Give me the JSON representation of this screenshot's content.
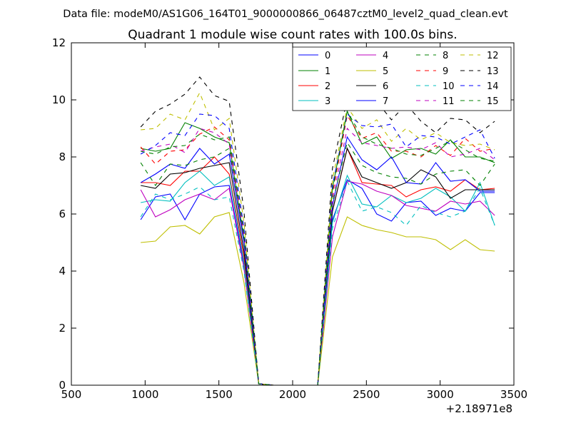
{
  "chart_data": {
    "type": "line",
    "suptitle": "Data file: modeM0/AS1G06_164T01_9000000866_06487cztM0_level2_quad_clean.evt",
    "title": "Quadrant 1 module wise count rates with 100.0s bins.",
    "xlabel": "",
    "ylabel": "",
    "x_offset_label": "+2.18971e8",
    "xlim": [
      500,
      3500
    ],
    "ylim": [
      0,
      12
    ],
    "xticks": [
      500,
      1000,
      1500,
      2000,
      2500,
      3000,
      3500
    ],
    "yticks": [
      0,
      2,
      4,
      6,
      8,
      10,
      12
    ],
    "x": [
      970,
      1070,
      1170,
      1270,
      1370,
      1470,
      1570,
      1670,
      1770,
      1870,
      1970,
      2070,
      2170,
      2270,
      2370,
      2470,
      2570,
      2670,
      2770,
      2870,
      2970,
      3070,
      3170,
      3270,
      3370
    ],
    "legend": {
      "position": "top-right",
      "ncol": 4
    },
    "series": [
      {
        "name": "0",
        "color": "#0000ff",
        "dash": "solid",
        "values": [
          5.8,
          6.6,
          6.7,
          5.8,
          6.7,
          6.95,
          7.0,
          4.2,
          0.05,
          0,
          0,
          0,
          0,
          5.8,
          7.2,
          6.9,
          6.0,
          5.75,
          6.4,
          6.45,
          5.95,
          6.2,
          6.1,
          6.75,
          6.75
        ]
      },
      {
        "name": "1",
        "color": "#008000",
        "dash": "solid",
        "values": [
          8.3,
          8.2,
          8.3,
          9.2,
          9.0,
          8.7,
          8.5,
          5.1,
          0.05,
          0,
          0,
          0,
          0,
          6.9,
          9.6,
          8.45,
          8.7,
          7.95,
          8.25,
          8.3,
          8.1,
          8.6,
          8.0,
          8.0,
          7.8
        ]
      },
      {
        "name": "2",
        "color": "#ff0000",
        "dash": "solid",
        "values": [
          7.1,
          7.1,
          7.0,
          7.5,
          7.5,
          8.0,
          7.4,
          4.5,
          0.05,
          0,
          0,
          0,
          0,
          6.1,
          8.3,
          7.1,
          7.05,
          7.0,
          6.6,
          6.85,
          6.95,
          6.8,
          7.2,
          6.85,
          6.9
        ]
      },
      {
        "name": "3",
        "color": "#00bfbf",
        "dash": "solid",
        "values": [
          6.4,
          6.5,
          6.45,
          7.1,
          7.5,
          7.0,
          7.3,
          4.3,
          0.05,
          0,
          0,
          0,
          0,
          5.7,
          7.35,
          6.35,
          6.25,
          6.65,
          6.4,
          6.55,
          6.9,
          6.6,
          6.1,
          7.1,
          5.6
        ]
      },
      {
        "name": "4",
        "color": "#bf00bf",
        "dash": "solid",
        "values": [
          6.85,
          5.9,
          6.15,
          6.5,
          6.7,
          6.5,
          6.9,
          4.1,
          0.05,
          0,
          0,
          0,
          0,
          5.2,
          7.15,
          7.05,
          6.8,
          6.65,
          6.3,
          6.2,
          6.1,
          6.45,
          6.35,
          6.45,
          5.95
        ]
      },
      {
        "name": "5",
        "color": "#bfbf00",
        "dash": "solid",
        "values": [
          5.0,
          5.05,
          5.55,
          5.6,
          5.3,
          5.9,
          6.05,
          3.6,
          0.05,
          0,
          0,
          0,
          0,
          4.5,
          5.9,
          5.6,
          5.45,
          5.35,
          5.2,
          5.2,
          5.1,
          4.75,
          5.1,
          4.75,
          4.7
        ]
      },
      {
        "name": "6",
        "color": "#000000",
        "dash": "solid",
        "values": [
          7.0,
          6.9,
          7.4,
          7.45,
          7.6,
          7.7,
          7.8,
          4.7,
          0.05,
          0,
          0,
          0,
          0,
          6.1,
          8.3,
          7.3,
          7.1,
          6.9,
          7.1,
          7.55,
          7.3,
          6.55,
          6.85,
          6.85,
          6.85
        ]
      },
      {
        "name": "7",
        "color": "#0000ff",
        "dash": "solid",
        "values": [
          7.1,
          7.4,
          7.75,
          7.6,
          8.3,
          7.75,
          8.1,
          5.0,
          0.05,
          0,
          0,
          0,
          0,
          6.3,
          8.7,
          7.9,
          7.55,
          8.0,
          7.1,
          7.05,
          7.8,
          7.15,
          7.2,
          6.8,
          6.8
        ]
      },
      {
        "name": "8",
        "color": "#008000",
        "dash": "dashed",
        "values": [
          7.8,
          7.0,
          7.75,
          7.7,
          7.9,
          8.0,
          8.3,
          5.2,
          0.05,
          0,
          0,
          0,
          0,
          6.4,
          8.5,
          7.7,
          7.45,
          7.3,
          7.25,
          7.05,
          7.4,
          7.5,
          7.55,
          7.0,
          7.75
        ]
      },
      {
        "name": "9",
        "color": "#ff0000",
        "dash": "dashed",
        "values": [
          8.35,
          7.75,
          8.2,
          8.25,
          8.8,
          9.05,
          8.6,
          5.3,
          0.05,
          0,
          0,
          0,
          0,
          6.7,
          9.45,
          8.65,
          8.85,
          8.2,
          8.2,
          8.0,
          8.4,
          8.05,
          8.65,
          8.2,
          8.3
        ]
      },
      {
        "name": "10",
        "color": "#00bfbf",
        "dash": "dashed",
        "values": [
          5.9,
          6.7,
          6.5,
          6.7,
          6.95,
          6.5,
          6.6,
          4.0,
          0.05,
          0,
          0,
          0,
          0,
          5.5,
          7.15,
          6.1,
          6.25,
          6.05,
          5.6,
          6.3,
          6.05,
          5.9,
          6.1,
          6.9,
          5.6
        ]
      },
      {
        "name": "11",
        "color": "#bf00bf",
        "dash": "dashed",
        "values": [
          8.2,
          8.35,
          8.45,
          8.15,
          9.0,
          8.85,
          8.45,
          5.2,
          0.05,
          0,
          0,
          0,
          0,
          6.5,
          9.0,
          8.5,
          8.4,
          8.3,
          8.35,
          8.25,
          8.5,
          8.0,
          8.1,
          8.3,
          7.9
        ]
      },
      {
        "name": "12",
        "color": "#bfbf00",
        "dash": "dashed",
        "values": [
          8.95,
          9.0,
          9.5,
          9.3,
          10.25,
          8.95,
          9.35,
          5.7,
          0.05,
          0,
          0,
          0,
          0,
          7.2,
          9.75,
          9.0,
          9.3,
          8.55,
          9.0,
          8.6,
          8.85,
          8.5,
          8.4,
          8.45,
          8.25
        ]
      },
      {
        "name": "13",
        "color": "#000000",
        "dash": "dashed",
        "values": [
          9.05,
          9.6,
          9.85,
          10.2,
          10.8,
          10.15,
          9.95,
          6.1,
          0.05,
          0,
          0,
          0,
          0,
          7.6,
          10.05,
          10.3,
          9.95,
          9.3,
          9.85,
          9.25,
          8.85,
          9.35,
          9.3,
          8.85,
          9.25
        ]
      },
      {
        "name": "14",
        "color": "#0000ff",
        "dash": "dashed",
        "values": [
          8.1,
          8.4,
          8.85,
          8.75,
          9.5,
          9.45,
          9.0,
          5.5,
          0.05,
          0,
          0,
          0,
          0,
          7.0,
          9.5,
          9.1,
          9.05,
          9.15,
          8.35,
          8.75,
          8.7,
          8.45,
          8.7,
          8.95,
          7.95
        ]
      },
      {
        "name": "15",
        "color": "#008000",
        "dash": "dashed",
        "values": [
          8.2,
          8.1,
          8.35,
          8.4,
          8.8,
          8.6,
          8.7,
          5.3,
          0.05,
          0,
          0,
          0,
          0,
          6.8,
          9.6,
          8.7,
          8.45,
          8.3,
          8.1,
          8.05,
          8.3,
          8.55,
          8.25,
          7.95,
          7.85
        ]
      }
    ]
  }
}
